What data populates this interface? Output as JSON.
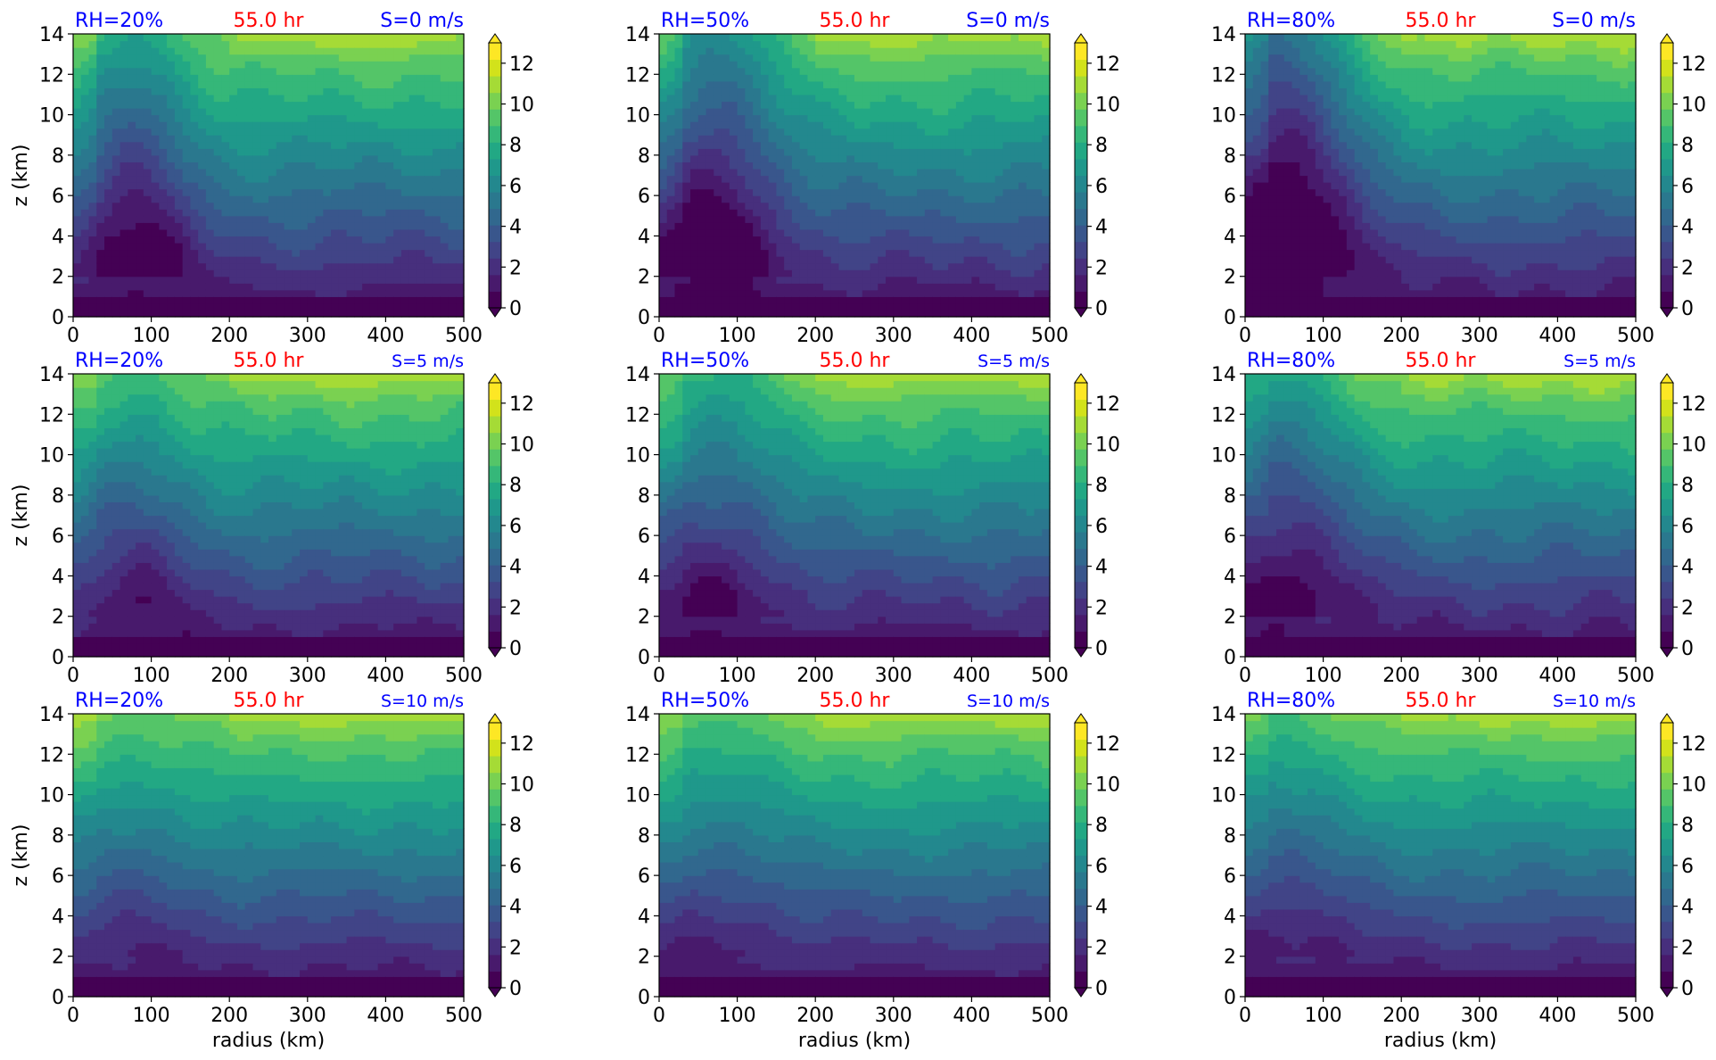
{
  "colors": {
    "rh_label": "#0000ff",
    "time_label": "#ff0000",
    "shear_label": "#0000ff",
    "axes": "#000000",
    "colormap": [
      "#440154",
      "#481a6c",
      "#472f7d",
      "#414487",
      "#39568c",
      "#31688e",
      "#2a788e",
      "#23888e",
      "#1f988b",
      "#22a884",
      "#35b779",
      "#54c568",
      "#7ad151",
      "#a5db36",
      "#d2e21b",
      "#fde725"
    ]
  },
  "chart_data": [
    {
      "type": "heatmap",
      "rh_label": "RH=20%",
      "time_label": "55.0 hr",
      "shear_label": "S=0 m/s",
      "xlabel": "",
      "ylabel": "z (km)",
      "xlim": [
        0,
        500
      ],
      "ylim": [
        0,
        14
      ],
      "xticks": [
        0,
        100,
        200,
        300,
        400,
        500
      ],
      "yticks": [
        0,
        2,
        4,
        6,
        8,
        10,
        12,
        14
      ],
      "colorbar": {
        "ticks": [
          0,
          2,
          4,
          6,
          8,
          10,
          12
        ],
        "range": [
          0,
          13
        ],
        "extend": "both"
      }
    },
    {
      "type": "heatmap",
      "rh_label": "RH=50%",
      "time_label": "55.0 hr",
      "shear_label": "S=0 m/s",
      "xlabel": "",
      "ylabel": "",
      "xlim": [
        0,
        500
      ],
      "ylim": [
        0,
        14
      ],
      "xticks": [
        0,
        100,
        200,
        300,
        400,
        500
      ],
      "yticks": [
        0,
        2,
        4,
        6,
        8,
        10,
        12,
        14
      ],
      "colorbar": {
        "ticks": [
          0,
          2,
          4,
          6,
          8,
          10,
          12
        ],
        "range": [
          0,
          13
        ],
        "extend": "both"
      }
    },
    {
      "type": "heatmap",
      "rh_label": "RH=80%",
      "time_label": "55.0 hr",
      "shear_label": "S=0 m/s",
      "xlabel": "",
      "ylabel": "",
      "xlim": [
        0,
        500
      ],
      "ylim": [
        0,
        14
      ],
      "xticks": [
        0,
        100,
        200,
        300,
        400,
        500
      ],
      "yticks": [
        0,
        2,
        4,
        6,
        8,
        10,
        12,
        14
      ],
      "colorbar": {
        "ticks": [
          0,
          2,
          4,
          6,
          8,
          10,
          12
        ],
        "range": [
          0,
          13
        ],
        "extend": "both"
      }
    },
    {
      "type": "heatmap",
      "rh_label": "RH=20%",
      "time_label": "55.0 hr",
      "shear_label": "S=5 m/s",
      "xlabel": "",
      "ylabel": "z (km)",
      "xlim": [
        0,
        500
      ],
      "ylim": [
        0,
        14
      ],
      "xticks": [
        0,
        100,
        200,
        300,
        400,
        500
      ],
      "yticks": [
        0,
        2,
        4,
        6,
        8,
        10,
        12,
        14
      ],
      "colorbar": {
        "ticks": [
          0,
          2,
          4,
          6,
          8,
          10,
          12
        ],
        "range": [
          0,
          13
        ],
        "extend": "both"
      }
    },
    {
      "type": "heatmap",
      "rh_label": "RH=50%",
      "time_label": "55.0 hr",
      "shear_label": "S=5 m/s",
      "xlabel": "",
      "ylabel": "",
      "xlim": [
        0,
        500
      ],
      "ylim": [
        0,
        14
      ],
      "xticks": [
        0,
        100,
        200,
        300,
        400,
        500
      ],
      "yticks": [
        0,
        2,
        4,
        6,
        8,
        10,
        12,
        14
      ],
      "colorbar": {
        "ticks": [
          0,
          2,
          4,
          6,
          8,
          10,
          12
        ],
        "range": [
          0,
          13
        ],
        "extend": "both"
      }
    },
    {
      "type": "heatmap",
      "rh_label": "RH=80%",
      "time_label": "55.0 hr",
      "shear_label": "S=5 m/s",
      "xlabel": "",
      "ylabel": "",
      "xlim": [
        0,
        500
      ],
      "ylim": [
        0,
        14
      ],
      "xticks": [
        0,
        100,
        200,
        300,
        400,
        500
      ],
      "yticks": [
        0,
        2,
        4,
        6,
        8,
        10,
        12,
        14
      ],
      "colorbar": {
        "ticks": [
          0,
          2,
          4,
          6,
          8,
          10,
          12
        ],
        "range": [
          0,
          13
        ],
        "extend": "both"
      }
    },
    {
      "type": "heatmap",
      "rh_label": "RH=20%",
      "time_label": "55.0 hr",
      "shear_label": "S=10 m/s",
      "xlabel": "radius (km)",
      "ylabel": "z (km)",
      "xlim": [
        0,
        500
      ],
      "ylim": [
        0,
        14
      ],
      "xticks": [
        0,
        100,
        200,
        300,
        400,
        500
      ],
      "yticks": [
        0,
        2,
        4,
        6,
        8,
        10,
        12,
        14
      ],
      "colorbar": {
        "ticks": [
          0,
          2,
          4,
          6,
          8,
          10,
          12
        ],
        "range": [
          0,
          13
        ],
        "extend": "both"
      }
    },
    {
      "type": "heatmap",
      "rh_label": "RH=50%",
      "time_label": "55.0 hr",
      "shear_label": "S=10 m/s",
      "xlabel": "radius (km)",
      "ylabel": "",
      "xlim": [
        0,
        500
      ],
      "ylim": [
        0,
        14
      ],
      "xticks": [
        0,
        100,
        200,
        300,
        400,
        500
      ],
      "yticks": [
        0,
        2,
        4,
        6,
        8,
        10,
        12,
        14
      ],
      "colorbar": {
        "ticks": [
          0,
          2,
          4,
          6,
          8,
          10,
          12
        ],
        "range": [
          0,
          13
        ],
        "extend": "both"
      }
    },
    {
      "type": "heatmap",
      "rh_label": "RH=80%",
      "time_label": "55.0 hr",
      "shear_label": "S=10 m/s",
      "xlabel": "radius (km)",
      "ylabel": "",
      "xlim": [
        0,
        500
      ],
      "ylim": [
        0,
        14
      ],
      "xticks": [
        0,
        100,
        200,
        300,
        400,
        500
      ],
      "yticks": [
        0,
        2,
        4,
        6,
        8,
        10,
        12,
        14
      ],
      "colorbar": {
        "ticks": [
          0,
          2,
          4,
          6,
          8,
          10,
          12
        ],
        "range": [
          0,
          13
        ],
        "extend": "both"
      }
    }
  ]
}
